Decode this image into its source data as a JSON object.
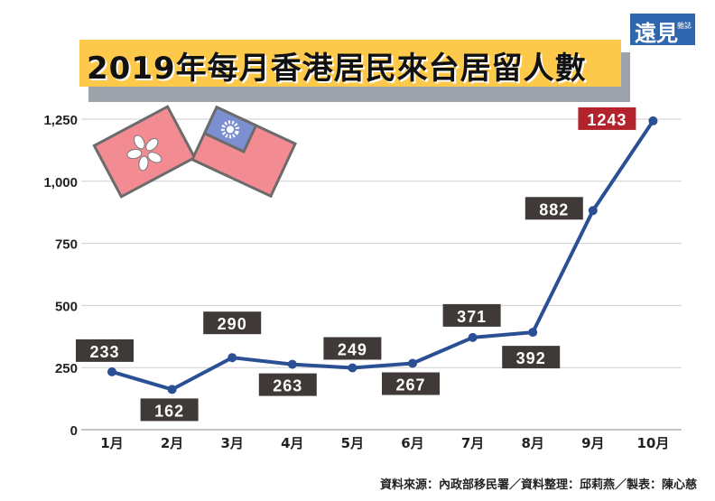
{
  "title": "2019年每月香港居民來台居留人數",
  "logo": {
    "main": "遠見",
    "sub": "雜誌"
  },
  "source": "資料來源：內政部移民署／資料整理：邱莉燕／製表：陳心慈",
  "chart_data": {
    "type": "line",
    "title": "2019年每月香港居民來台居留人數",
    "categories": [
      "1月",
      "2月",
      "3月",
      "4月",
      "5月",
      "6月",
      "7月",
      "8月",
      "9月",
      "10月"
    ],
    "values": [
      233,
      162,
      290,
      263,
      249,
      267,
      371,
      392,
      882,
      1243
    ],
    "ylim": [
      0,
      1250
    ],
    "yticks": [
      0,
      250,
      500,
      750,
      1000,
      1250
    ],
    "ytick_labels": [
      "0",
      "250",
      "500",
      "750",
      "1,000",
      "1,250"
    ],
    "grid": true,
    "line_color": "#2b4f94",
    "label_color": "#3f3a37",
    "highlight_label_color": "#b3232b"
  },
  "decorations": {
    "icons": [
      "hong-kong-flag-icon",
      "taiwan-flag-icon"
    ]
  }
}
